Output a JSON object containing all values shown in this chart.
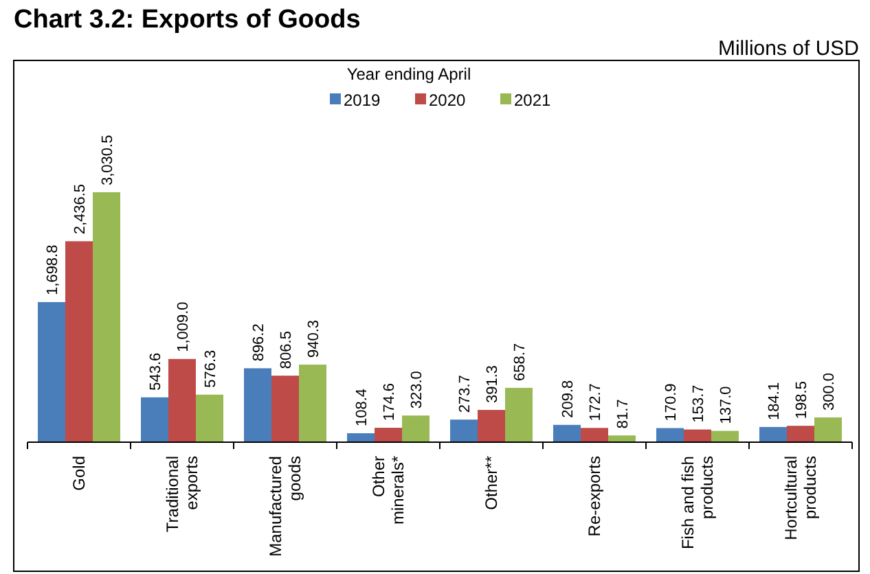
{
  "chart_data": {
    "type": "bar",
    "title": "Chart 3.2: Exports of Goods",
    "annotations": [
      "Millions of USD"
    ],
    "legend_title": "Year ending April",
    "legend": "top",
    "categories": [
      "Gold",
      "Traditional\nexports",
      "Manufactured\ngoods",
      "Other\nminerals*",
      "Other**",
      "Re-exports",
      "Fish and fish\nproducts",
      "Hortcultural\nproducts"
    ],
    "series": [
      {
        "name": "2019",
        "color": "#4a7ebb",
        "values": [
          1698.8,
          543.6,
          896.2,
          108.4,
          273.7,
          209.8,
          170.9,
          184.1
        ],
        "value_labels": [
          "1,698.8",
          "543.6",
          "896.2",
          "108.4",
          "273.7",
          "209.8",
          "170.9",
          "184.1"
        ]
      },
      {
        "name": "2020",
        "color": "#be4b48",
        "values": [
          2436.5,
          1009.0,
          806.5,
          174.6,
          391.3,
          172.7,
          153.7,
          198.5
        ],
        "value_labels": [
          "2,436.5",
          "1,009.0",
          "806.5",
          "174.6",
          "391.3",
          "172.7",
          "153.7",
          "198.5"
        ]
      },
      {
        "name": "2021",
        "color": "#98b954",
        "values": [
          3030.5,
          576.3,
          940.3,
          323.0,
          658.7,
          81.7,
          137.0,
          300.0
        ],
        "value_labels": [
          "3,030.5",
          "576.3",
          "940.3",
          "323.0",
          "658.7",
          "81.7",
          "137.0",
          "300.0"
        ]
      }
    ]
  }
}
